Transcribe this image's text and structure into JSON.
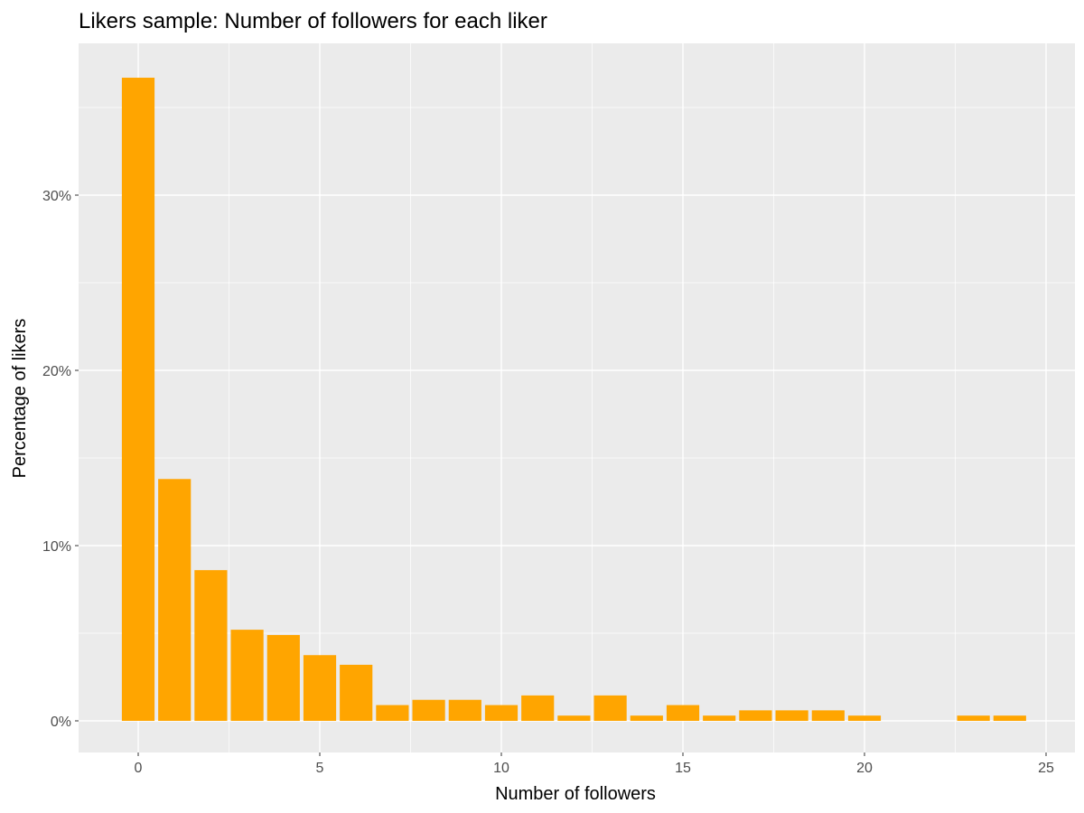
{
  "chart_data": {
    "type": "bar",
    "title": "Likers sample: Number of followers for each liker",
    "xlabel": "Number of followers",
    "ylabel": "Percentage of likers",
    "x": [
      0,
      1,
      2,
      3,
      4,
      5,
      6,
      7,
      8,
      9,
      10,
      11,
      12,
      13,
      14,
      15,
      16,
      17,
      18,
      19,
      20,
      21,
      22,
      23,
      24
    ],
    "values": [
      36.7,
      13.8,
      8.6,
      5.2,
      4.9,
      3.75,
      3.2,
      0.9,
      1.2,
      1.2,
      0.9,
      1.45,
      0.3,
      1.45,
      0.3,
      0.9,
      0.3,
      0.6,
      0.6,
      0.6,
      0.3,
      0,
      0,
      0.3,
      0.3
    ],
    "xlim": [
      -0.5,
      24.5
    ],
    "ylim": [
      0,
      36.7
    ],
    "x_ticks": [
      0,
      5,
      10,
      15,
      20,
      25
    ],
    "y_ticks": [
      0,
      10,
      20,
      30
    ],
    "y_tick_labels": [
      "0%",
      "10%",
      "20%",
      "30%"
    ],
    "grid": true,
    "legend": "none",
    "colors": {
      "bar": "#FFA500",
      "panel": "#EBEBEB",
      "grid": "#FFFFFF"
    }
  }
}
